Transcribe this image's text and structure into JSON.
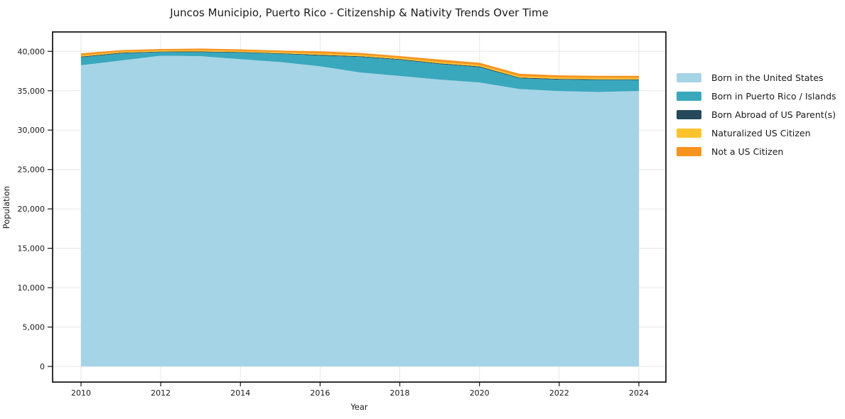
{
  "figure": {
    "title": "Juncos Municipio, Puerto Rico - Citizenship & Nativity Trends Over Time"
  },
  "chart_data": {
    "type": "area",
    "stacked": true,
    "title": "Juncos Municipio, Puerto Rico - Citizenship & Nativity Trends Over Time",
    "xlabel": "Year",
    "ylabel": "Population",
    "grid": true,
    "legend_position": "right-outside",
    "x": [
      2010,
      2011,
      2012,
      2013,
      2014,
      2015,
      2016,
      2017,
      2018,
      2019,
      2020,
      2021,
      2022,
      2023,
      2024
    ],
    "series": [
      {
        "name": "Born in the United States",
        "color": "#a5d4e6",
        "values": [
          38230,
          38840,
          39440,
          39390,
          39000,
          38640,
          38100,
          37320,
          36870,
          36410,
          36050,
          35210,
          34960,
          34840,
          34960
        ]
      },
      {
        "name": "Born in Puerto Rico / Islands",
        "color": "#39a8bd",
        "values": [
          1000,
          900,
          460,
          510,
          840,
          1050,
          1350,
          1970,
          2060,
          1970,
          1940,
          1360,
          1450,
          1520,
          1400
        ]
      },
      {
        "name": "Born Abroad of US Parent(s)",
        "color": "#25485a",
        "values": [
          100,
          80,
          70,
          80,
          70,
          70,
          100,
          90,
          80,
          100,
          100,
          100,
          90,
          90,
          90
        ]
      },
      {
        "name": "Naturalized US Citizen",
        "color": "#fcc32d",
        "values": [
          160,
          130,
          130,
          150,
          130,
          130,
          170,
          160,
          150,
          180,
          170,
          180,
          170,
          170,
          170
        ]
      },
      {
        "name": "Not a US Citizen",
        "color": "#f7941f",
        "values": [
          260,
          200,
          200,
          220,
          210,
          210,
          280,
          260,
          240,
          290,
          290,
          300,
          280,
          280,
          280
        ]
      }
    ],
    "x_ticks": {
      "values": [
        2010,
        2012,
        2014,
        2016,
        2018,
        2020,
        2022,
        2024
      ],
      "labels": [
        "2010",
        "2012",
        "2014",
        "2016",
        "2018",
        "2020",
        "2022",
        "2024"
      ]
    },
    "y_ticks": {
      "values": [
        0,
        5000,
        10000,
        15000,
        20000,
        25000,
        30000,
        35000,
        40000
      ],
      "labels": [
        "0",
        "5,000",
        "10,000",
        "15,000",
        "20,000",
        "25,000",
        "30,000",
        "35,000",
        "40,000"
      ]
    },
    "xlim": [
      2009.3,
      2024.7
    ],
    "ylim": [
      -2000,
      42500
    ]
  }
}
